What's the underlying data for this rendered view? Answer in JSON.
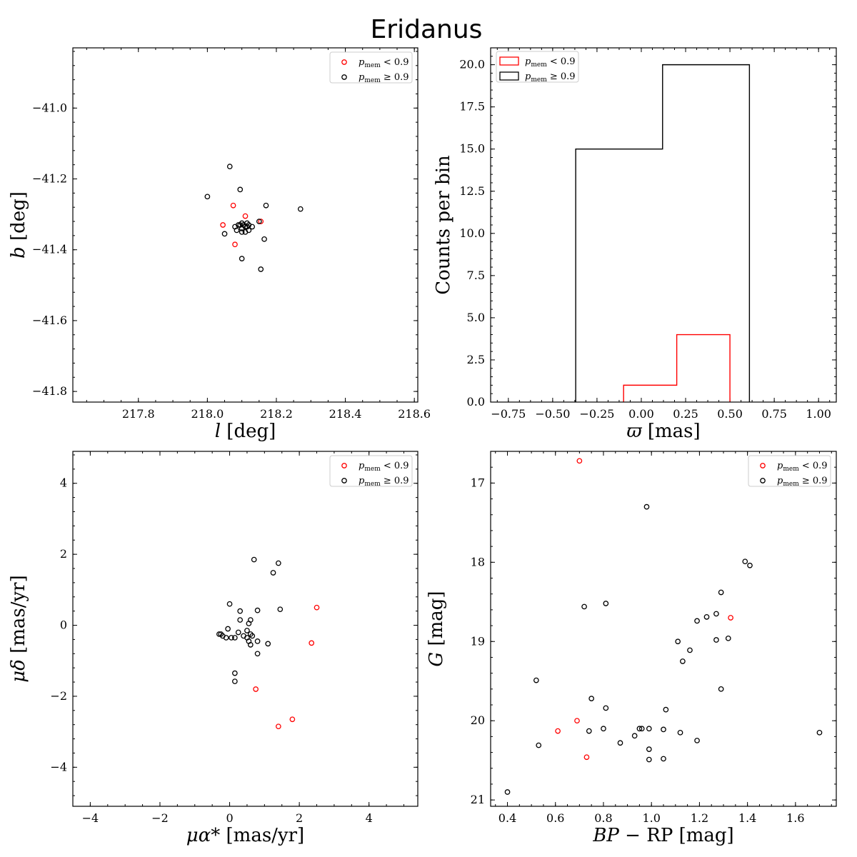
{
  "title": "Eridanus",
  "chart_data": [
    {
      "type": "scatter",
      "xlabel": "l [deg]",
      "ylabel": "b [deg]",
      "xlim": [
        217.61,
        218.61
      ],
      "ylim": [
        -41.83,
        -40.83
      ],
      "xticks": [
        217.8,
        218.0,
        218.2,
        218.4,
        218.6
      ],
      "yticks": [
        -41.8,
        -41.6,
        -41.4,
        -41.2,
        -41.0
      ],
      "xtick_labels": [
        "217.8",
        "218.0",
        "218.2",
        "218.4",
        "218.6"
      ],
      "ytick_labels": [
        "−41.8",
        "−41.6",
        "−41.4",
        "−41.2",
        "−41.0"
      ],
      "legend": "top-right",
      "series": [
        {
          "name": "p_mem < 0.9",
          "color": "#ff0000",
          "points": [
            [
              218.045,
              -41.33
            ],
            [
              218.075,
              -41.275
            ],
            [
              218.08,
              -41.385
            ],
            [
              218.11,
              -41.305
            ],
            [
              218.155,
              -41.32
            ]
          ]
        },
        {
          "name": "p_mem ≥ 0.9",
          "color": "#000000",
          "points": [
            [
              218.065,
              -41.165
            ],
            [
              218.095,
              -41.23
            ],
            [
              218.0,
              -41.25
            ],
            [
              218.17,
              -41.275
            ],
            [
              218.27,
              -41.285
            ],
            [
              218.05,
              -41.355
            ],
            [
              218.08,
              -41.335
            ],
            [
              218.085,
              -41.345
            ],
            [
              218.095,
              -41.33
            ],
            [
              218.1,
              -41.325
            ],
            [
              218.105,
              -41.33
            ],
            [
              218.1,
              -41.34
            ],
            [
              218.11,
              -41.335
            ],
            [
              218.115,
              -41.335
            ],
            [
              218.12,
              -41.33
            ],
            [
              218.12,
              -41.345
            ],
            [
              218.11,
              -41.35
            ],
            [
              218.1,
              -41.35
            ],
            [
              218.09,
              -41.33
            ],
            [
              218.13,
              -41.335
            ],
            [
              218.115,
              -41.325
            ],
            [
              218.15,
              -41.32
            ],
            [
              218.165,
              -41.37
            ],
            [
              218.1,
              -41.425
            ],
            [
              218.155,
              -41.455
            ]
          ]
        }
      ]
    },
    {
      "type": "histogram",
      "xlabel": "ϖ [mas]",
      "ylabel": "Counts per bin",
      "xlim": [
        -0.85,
        1.1
      ],
      "ylim": [
        0,
        21
      ],
      "xticks": [
        -0.75,
        -0.5,
        -0.25,
        0.0,
        0.25,
        0.5,
        0.75,
        1.0
      ],
      "yticks": [
        0,
        2.5,
        5,
        7.5,
        10,
        12.5,
        15,
        17.5,
        20
      ],
      "xtick_labels": [
        "−0.75",
        "−0.50",
        "−0.25",
        "0.00",
        "0.25",
        "0.50",
        "0.75",
        "1.00"
      ],
      "ytick_labels": [
        "0.0",
        "2.5",
        "5.0",
        "7.5",
        "10.0",
        "12.5",
        "15.0",
        "17.5",
        "20.0"
      ],
      "legend": "top-left",
      "series": [
        {
          "name": "p_mem < 0.9",
          "color": "#ff0000",
          "edges": [
            -0.1,
            0.2,
            0.5
          ],
          "counts": [
            1,
            4
          ]
        },
        {
          "name": "p_mem ≥ 0.9",
          "color": "#000000",
          "edges": [
            -0.37,
            0.12,
            0.61
          ],
          "counts": [
            15,
            20
          ]
        }
      ]
    },
    {
      "type": "scatter",
      "xlabel": "μα* [mas/yr]",
      "ylabel": "μδ [mas/yr]",
      "xlim": [
        -4.5,
        5.4
      ],
      "ylim": [
        -5.1,
        4.9
      ],
      "xticks": [
        -4,
        -2,
        0,
        2,
        4
      ],
      "yticks": [
        -4,
        -2,
        0,
        2,
        4
      ],
      "xtick_labels": [
        "−4",
        "−2",
        "0",
        "2",
        "4"
      ],
      "ytick_labels": [
        "−4",
        "−2",
        "0",
        "2",
        "4"
      ],
      "legend": "top-right",
      "series": [
        {
          "name": "p_mem < 0.9",
          "color": "#ff0000",
          "points": [
            [
              2.5,
              0.5
            ],
            [
              2.35,
              -0.5
            ],
            [
              0.75,
              -1.8
            ],
            [
              1.8,
              -2.65
            ],
            [
              1.4,
              -2.85
            ]
          ]
        },
        {
          "name": "p_mem ≥ 0.9",
          "color": "#000000",
          "points": [
            [
              0.7,
              1.85
            ],
            [
              1.4,
              1.75
            ],
            [
              1.25,
              1.48
            ],
            [
              0.0,
              0.6
            ],
            [
              0.8,
              0.42
            ],
            [
              1.45,
              0.45
            ],
            [
              0.3,
              0.4
            ],
            [
              0.6,
              0.15
            ],
            [
              0.3,
              0.15
            ],
            [
              0.55,
              0.05
            ],
            [
              -0.05,
              -0.1
            ],
            [
              0.5,
              -0.15
            ],
            [
              0.6,
              -0.25
            ],
            [
              -0.25,
              -0.25
            ],
            [
              -0.2,
              -0.3
            ],
            [
              -0.1,
              -0.35
            ],
            [
              0.05,
              -0.35
            ],
            [
              0.15,
              -0.35
            ],
            [
              0.25,
              -0.2
            ],
            [
              0.4,
              -0.3
            ],
            [
              0.5,
              -0.35
            ],
            [
              0.65,
              -0.3
            ],
            [
              0.55,
              -0.45
            ],
            [
              0.6,
              -0.55
            ],
            [
              0.8,
              -0.45
            ],
            [
              1.1,
              -0.52
            ],
            [
              0.8,
              -0.8
            ],
            [
              0.15,
              -1.35
            ],
            [
              0.15,
              -1.58
            ],
            [
              -0.3,
              -0.25
            ]
          ]
        }
      ]
    },
    {
      "type": "scatter",
      "xlabel": "BP − RP [mag]",
      "ylabel": "G [mag]",
      "xlim": [
        0.33,
        1.77
      ],
      "ylim": [
        21.08,
        16.6
      ],
      "y_inverted": true,
      "xticks": [
        0.4,
        0.6,
        0.8,
        1.0,
        1.2,
        1.4,
        1.6
      ],
      "yticks": [
        17,
        18,
        19,
        20,
        21
      ],
      "xtick_labels": [
        "0.4",
        "0.6",
        "0.8",
        "1.0",
        "1.2",
        "1.4",
        "1.6"
      ],
      "ytick_labels": [
        "17",
        "18",
        "19",
        "20",
        "21"
      ],
      "legend": "top-right",
      "series": [
        {
          "name": "p_mem < 0.9",
          "color": "#ff0000",
          "points": [
            [
              0.7,
              16.72
            ],
            [
              1.33,
              18.7
            ],
            [
              0.69,
              20.0
            ],
            [
              0.61,
              20.13
            ],
            [
              0.73,
              20.46
            ]
          ]
        },
        {
          "name": "p_mem ≥ 0.9",
          "color": "#000000",
          "points": [
            [
              0.98,
              17.3
            ],
            [
              1.39,
              17.99
            ],
            [
              1.41,
              18.04
            ],
            [
              1.29,
              18.38
            ],
            [
              0.81,
              18.52
            ],
            [
              0.72,
              18.56
            ],
            [
              1.27,
              18.65
            ],
            [
              1.23,
              18.69
            ],
            [
              1.19,
              18.74
            ],
            [
              1.32,
              18.96
            ],
            [
              1.27,
              18.98
            ],
            [
              1.11,
              19.0
            ],
            [
              1.16,
              19.11
            ],
            [
              1.13,
              19.25
            ],
            [
              0.52,
              19.49
            ],
            [
              1.29,
              19.6
            ],
            [
              0.75,
              19.72
            ],
            [
              0.81,
              19.84
            ],
            [
              1.06,
              19.86
            ],
            [
              0.74,
              20.13
            ],
            [
              0.8,
              20.1
            ],
            [
              0.95,
              20.1
            ],
            [
              0.96,
              20.1
            ],
            [
              0.99,
              20.1
            ],
            [
              1.05,
              20.11
            ],
            [
              1.12,
              20.15
            ],
            [
              0.93,
              20.19
            ],
            [
              1.19,
              20.25
            ],
            [
              0.87,
              20.28
            ],
            [
              0.53,
              20.31
            ],
            [
              0.99,
              20.36
            ],
            [
              0.99,
              20.49
            ],
            [
              1.05,
              20.48
            ],
            [
              1.7,
              20.15
            ],
            [
              0.4,
              20.9
            ]
          ]
        }
      ]
    }
  ]
}
